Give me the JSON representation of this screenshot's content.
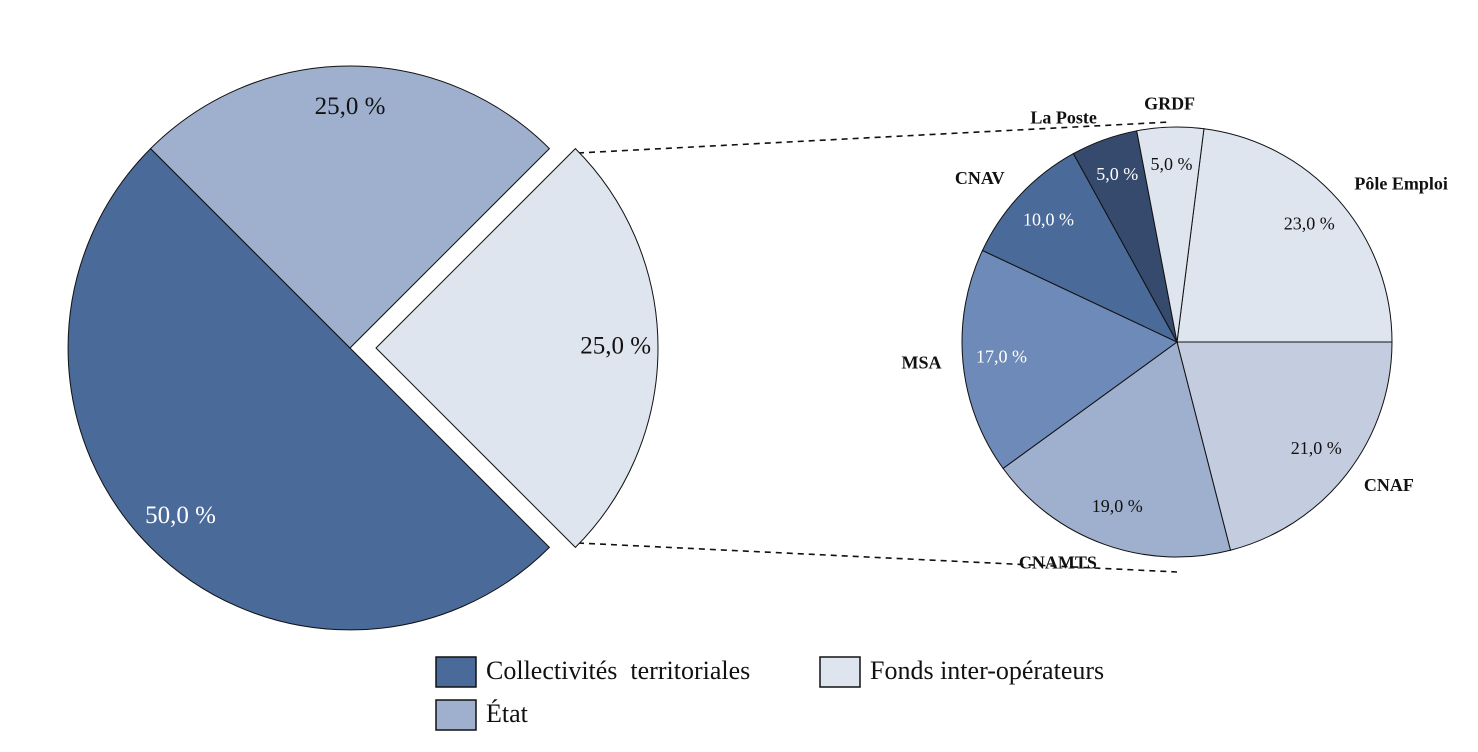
{
  "chart_data": [
    {
      "type": "pie",
      "categories": [
        "Collectivités  territoriales",
        "État",
        "Fonds inter-opérateurs"
      ],
      "values": [
        50,
        25,
        25
      ],
      "value_labels": [
        "50,0 %",
        "25,0 %",
        "25,0 %"
      ],
      "colors": [
        "#4a6a99",
        "#9eb0cd",
        "#dfe5ef"
      ],
      "legend": "bottom"
    },
    {
      "type": "pie",
      "categories": [
        "Pôle Emploi",
        "CNAF",
        "CNAMTS",
        "MSA",
        "CNAV",
        "La Poste",
        "GRDF"
      ],
      "values": [
        23,
        21,
        19,
        17,
        10,
        5,
        5
      ],
      "value_labels": [
        "23,0 %",
        "21,0 %",
        "19,0 %",
        "17,0 %",
        "10,0 %",
        "5,0 %",
        "5,0 %"
      ],
      "colors": [
        "#dfe5ef",
        "#c3cddf",
        "#9eb0cd",
        "#6d8ab8",
        "#4a6a99",
        "#364a6e",
        "#dfe5ef"
      ]
    }
  ]
}
